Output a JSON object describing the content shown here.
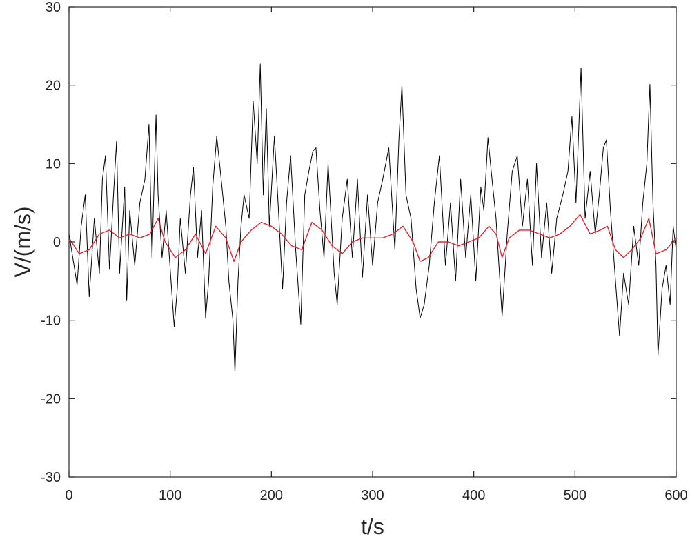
{
  "chart_data": {
    "type": "line",
    "title": "",
    "xlabel": "t/s",
    "ylabel": "V/(m/s)",
    "xlim": [
      0,
      600
    ],
    "ylim": [
      -30,
      30
    ],
    "grid": false,
    "box": true,
    "x_ticks": [
      0,
      100,
      200,
      300,
      400,
      500,
      600
    ],
    "x_tick_labels": [
      "0",
      "100",
      "200",
      "300",
      "400",
      "500",
      "600"
    ],
    "y_ticks": [
      30,
      20,
      10,
      0,
      -10,
      -20,
      -30
    ],
    "y_tick_labels": [
      "30",
      "20",
      "10",
      "0",
      "-10",
      "-20",
      "-30"
    ],
    "series_colors": [
      "#000000",
      "#e8202a"
    ],
    "series": [
      {
        "values": [
          [
            0,
            1.0
          ],
          [
            5,
            -3.0
          ],
          [
            8,
            -5.5
          ],
          [
            12,
            2.0
          ],
          [
            16,
            6.0
          ],
          [
            20,
            -7.0
          ],
          [
            25,
            3.0
          ],
          [
            30,
            -4.0
          ],
          [
            33,
            8.0
          ],
          [
            36,
            11.0
          ],
          [
            40,
            -3.5
          ],
          [
            44,
            6.0
          ],
          [
            47,
            12.8
          ],
          [
            50,
            -4.0
          ],
          [
            55,
            7.0
          ],
          [
            57,
            -7.5
          ],
          [
            60,
            4.0
          ],
          [
            65,
            -3.0
          ],
          [
            70,
            5.0
          ],
          [
            75,
            8.0
          ],
          [
            79,
            15.0
          ],
          [
            82,
            -2.0
          ],
          [
            86,
            16.2
          ],
          [
            88,
            6.0
          ],
          [
            92,
            -2.0
          ],
          [
            96,
            4.0
          ],
          [
            100,
            -3.5
          ],
          [
            104,
            -10.8
          ],
          [
            107,
            -6.0
          ],
          [
            110,
            3.0
          ],
          [
            115,
            -4.0
          ],
          [
            120,
            6.0
          ],
          [
            123,
            9.5
          ],
          [
            127,
            -2.0
          ],
          [
            131,
            4.0
          ],
          [
            135,
            -9.7
          ],
          [
            138,
            -5.0
          ],
          [
            142,
            7.0
          ],
          [
            146,
            13.5
          ],
          [
            150,
            8.5
          ],
          [
            155,
            2.0
          ],
          [
            158,
            -5.0
          ],
          [
            162,
            -10.0
          ],
          [
            164,
            -16.7
          ],
          [
            167,
            -5.0
          ],
          [
            170,
            2.0
          ],
          [
            173,
            6.0
          ],
          [
            178,
            3.0
          ],
          [
            182,
            18.0
          ],
          [
            186,
            10.0
          ],
          [
            189,
            22.7
          ],
          [
            192,
            6.0
          ],
          [
            195,
            17.0
          ],
          [
            198,
            2.0
          ],
          [
            203,
            13.5
          ],
          [
            207,
            4.0
          ],
          [
            211,
            -6.0
          ],
          [
            215,
            5.0
          ],
          [
            219,
            11.0
          ],
          [
            224,
            -1.0
          ],
          [
            229,
            -10.5
          ],
          [
            233,
            6.0
          ],
          [
            237,
            9.0
          ],
          [
            241,
            11.6
          ],
          [
            244,
            12.0
          ],
          [
            248,
            4.0
          ],
          [
            252,
            -2.0
          ],
          [
            256,
            10.0
          ],
          [
            262,
            -4.0
          ],
          [
            265,
            -8.0
          ],
          [
            270,
            3.0
          ],
          [
            275,
            8.0
          ],
          [
            280,
            -2.0
          ],
          [
            285,
            8.0
          ],
          [
            290,
            -4.5
          ],
          [
            295,
            6.0
          ],
          [
            300,
            -3.0
          ],
          [
            305,
            5.0
          ],
          [
            310,
            8.0
          ],
          [
            316,
            12.0
          ],
          [
            322,
            -1.0
          ],
          [
            326,
            13.0
          ],
          [
            329,
            20.0
          ],
          [
            333,
            6.0
          ],
          [
            338,
            3.0
          ],
          [
            343,
            -6.0
          ],
          [
            347,
            -9.7
          ],
          [
            351,
            -8.0
          ],
          [
            356,
            -3.0
          ],
          [
            361,
            5.0
          ],
          [
            366,
            11.0
          ],
          [
            372,
            -3.0
          ],
          [
            377,
            5.0
          ],
          [
            382,
            -5.0
          ],
          [
            387,
            8.0
          ],
          [
            392,
            -2.0
          ],
          [
            397,
            6.0
          ],
          [
            402,
            -5.0
          ],
          [
            407,
            7.0
          ],
          [
            410,
            4.0
          ],
          [
            414,
            13.3
          ],
          [
            418,
            8.0
          ],
          [
            422,
            3.0
          ],
          [
            428,
            -9.5
          ],
          [
            433,
            1.0
          ],
          [
            438,
            9.0
          ],
          [
            443,
            11.0
          ],
          [
            448,
            2.0
          ],
          [
            453,
            8.0
          ],
          [
            458,
            -3.0
          ],
          [
            462,
            10.0
          ],
          [
            467,
            -2.0
          ],
          [
            472,
            5.0
          ],
          [
            477,
            -4.0
          ],
          [
            482,
            3.0
          ],
          [
            488,
            6.0
          ],
          [
            493,
            9.0
          ],
          [
            497,
            16.0
          ],
          [
            501,
            5.0
          ],
          [
            506,
            22.2
          ],
          [
            510,
            3.0
          ],
          [
            515,
            9.0
          ],
          [
            520,
            1.0
          ],
          [
            524,
            6.0
          ],
          [
            528,
            12.0
          ],
          [
            531,
            13.0
          ],
          [
            535,
            4.0
          ],
          [
            540,
            -5.0
          ],
          [
            544,
            -12.0
          ],
          [
            548,
            -4.0
          ],
          [
            553,
            -8.0
          ],
          [
            558,
            2.0
          ],
          [
            563,
            -3.0
          ],
          [
            567,
            5.0
          ],
          [
            571,
            10.0
          ],
          [
            574,
            20.1
          ],
          [
            577,
            5.0
          ],
          [
            580,
            -3.0
          ],
          [
            582,
            -14.5
          ],
          [
            586,
            -6.0
          ],
          [
            590,
            -3.0
          ],
          [
            594,
            -8.0
          ],
          [
            597,
            2.0
          ],
          [
            600,
            -1.0
          ]
        ]
      },
      {
        "values": [
          [
            0,
            0.5
          ],
          [
            10,
            -1.5
          ],
          [
            20,
            -1.0
          ],
          [
            30,
            1.0
          ],
          [
            40,
            1.5
          ],
          [
            50,
            0.5
          ],
          [
            60,
            1.0
          ],
          [
            70,
            0.5
          ],
          [
            80,
            1.0
          ],
          [
            88,
            3.0
          ],
          [
            95,
            0.0
          ],
          [
            105,
            -2.0
          ],
          [
            115,
            -1.0
          ],
          [
            125,
            1.0
          ],
          [
            135,
            -1.5
          ],
          [
            145,
            2.0
          ],
          [
            155,
            0.5
          ],
          [
            163,
            -2.5
          ],
          [
            170,
            0.0
          ],
          [
            180,
            1.5
          ],
          [
            190,
            2.5
          ],
          [
            200,
            2.0
          ],
          [
            210,
            1.0
          ],
          [
            220,
            -0.5
          ],
          [
            230,
            -1.0
          ],
          [
            240,
            2.5
          ],
          [
            250,
            1.5
          ],
          [
            260,
            -0.5
          ],
          [
            270,
            -1.5
          ],
          [
            280,
            0.0
          ],
          [
            290,
            0.5
          ],
          [
            300,
            0.5
          ],
          [
            310,
            0.5
          ],
          [
            320,
            1.0
          ],
          [
            330,
            2.0
          ],
          [
            340,
            0.0
          ],
          [
            347,
            -2.5
          ],
          [
            355,
            -2.0
          ],
          [
            365,
            0.0
          ],
          [
            375,
            0.0
          ],
          [
            385,
            -0.5
          ],
          [
            395,
            0.0
          ],
          [
            405,
            0.5
          ],
          [
            415,
            2.0
          ],
          [
            422,
            1.0
          ],
          [
            428,
            -2.0
          ],
          [
            435,
            0.5
          ],
          [
            445,
            1.5
          ],
          [
            455,
            1.5
          ],
          [
            465,
            1.0
          ],
          [
            475,
            0.5
          ],
          [
            485,
            1.0
          ],
          [
            495,
            2.0
          ],
          [
            505,
            3.5
          ],
          [
            515,
            1.0
          ],
          [
            525,
            1.5
          ],
          [
            532,
            2.0
          ],
          [
            540,
            -1.0
          ],
          [
            548,
            -2.0
          ],
          [
            556,
            -1.0
          ],
          [
            565,
            0.5
          ],
          [
            573,
            3.0
          ],
          [
            580,
            -1.5
          ],
          [
            590,
            -1.0
          ],
          [
            600,
            0.5
          ]
        ]
      }
    ]
  }
}
